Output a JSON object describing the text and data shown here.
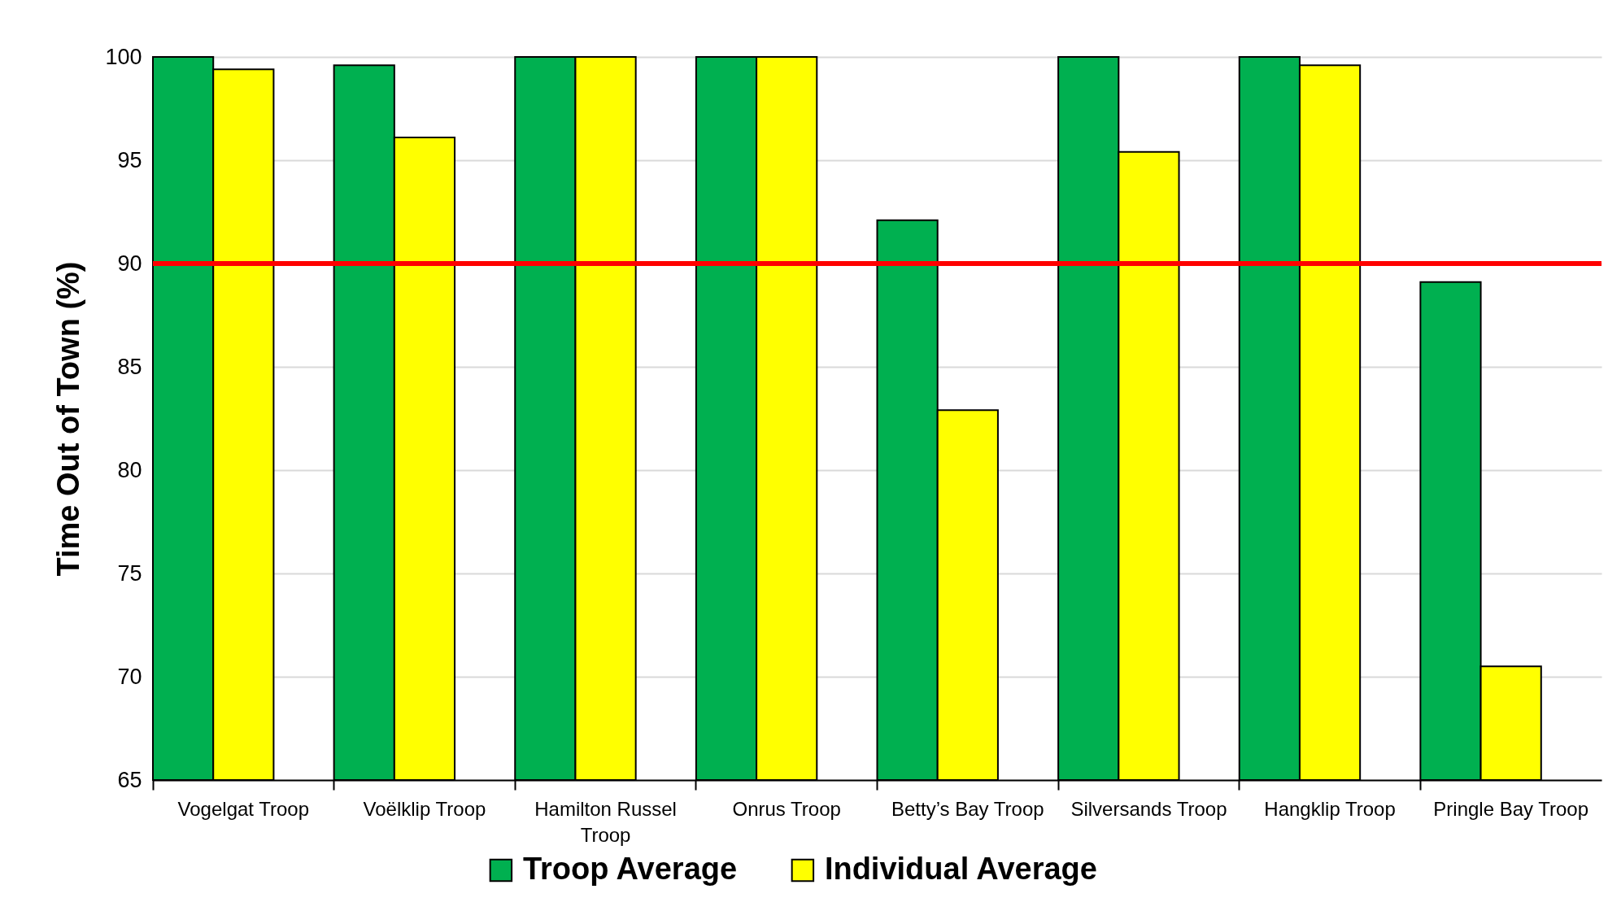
{
  "chart_data": {
    "type": "bar",
    "ylabel": "Time Out of Town (%)",
    "categories": [
      "Vogelgat Troop",
      "Voëlklip Troop",
      "Hamilton Russel Troop",
      "Onrus Troop",
      "Betty’s Bay Troop",
      "Silversands Troop",
      "Hangklip Troop",
      "Pringle Bay Troop"
    ],
    "series": [
      {
        "name": "Troop Average",
        "color": "#00b050",
        "values": [
          100,
          99.6,
          100,
          100,
          92.1,
          100,
          100,
          89.1
        ]
      },
      {
        "name": "Individual Average",
        "color": "#ffff00",
        "values": [
          99.4,
          96.1,
          100,
          100,
          82.9,
          95.4,
          99.6,
          70.5
        ]
      }
    ],
    "ylim": [
      65,
      100
    ],
    "yticks": [
      65,
      70,
      75,
      80,
      85,
      90,
      95,
      100
    ],
    "grid": "y",
    "legend": "bottom",
    "ref_lines": [
      {
        "axis": "y",
        "value": 90,
        "color": "#ff0000"
      }
    ]
  }
}
